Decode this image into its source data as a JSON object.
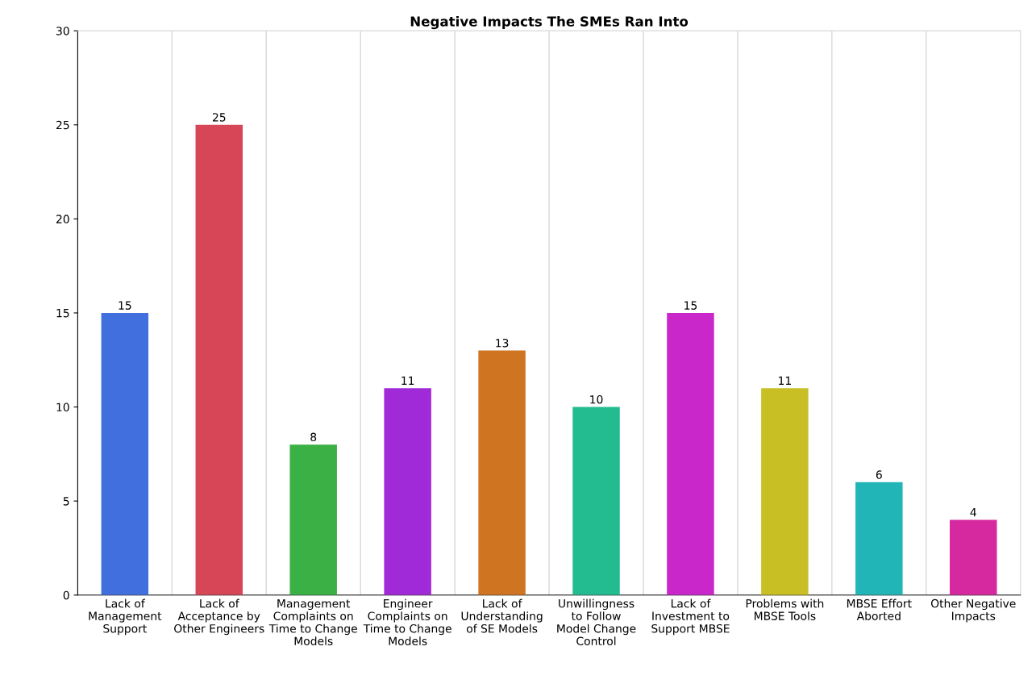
{
  "chart_data": {
    "type": "bar",
    "title": "Negative Impacts The SMEs Ran Into",
    "categories": [
      "Lack of\nManagement\nSupport",
      "Lack of\nAcceptance by\nOther Engineers",
      "Management\nComplaints on\nTime to Change\nModels",
      "Engineer\nComplaints on\nTime to Change\nModels",
      "Lack of\nUnderstanding\nof SE Models",
      "Unwillingness\nto Follow\nModel Change\nControl",
      "Lack of\nInvestment to\nSupport MBSE",
      "Problems with\nMBSE Tools",
      "MBSE Effort\nAborted",
      "Other Negative\nImpacts"
    ],
    "values": [
      15,
      25,
      8,
      11,
      13,
      10,
      15,
      11,
      6,
      4
    ],
    "colors": [
      "#4170de",
      "#d64657",
      "#3bb044",
      "#a02ad8",
      "#cf7522",
      "#22bc90",
      "#c927c9",
      "#c8bf25",
      "#22b5b8",
      "#d6289f"
    ],
    "ylim": [
      0,
      30
    ],
    "yticks": [
      0,
      5,
      10,
      15,
      20,
      25,
      30
    ],
    "grid": "x",
    "data_labels": true
  }
}
